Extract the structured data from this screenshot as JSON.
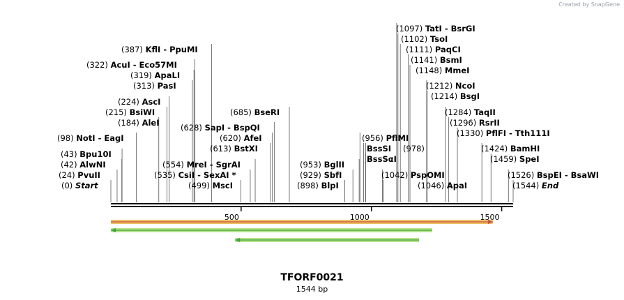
{
  "credit": "Created by SnapGene",
  "title": "TFORF0021",
  "length_label": "1544 bp",
  "sequence_length": 1544,
  "ticks": [
    500,
    1000,
    1500
  ],
  "sites": [
    {
      "pos": "(0)",
      "names": [
        "Start"
      ],
      "bp": 0,
      "italic": true
    },
    {
      "pos": "(24)",
      "names": [
        "PvuII"
      ],
      "bp": 24
    },
    {
      "pos": "(42)",
      "names": [
        "AlwNI"
      ],
      "bp": 42
    },
    {
      "pos": "(43)",
      "names": [
        "Bpu10I"
      ],
      "bp": 43
    },
    {
      "pos": "(98)",
      "names": [
        "NotI",
        "EagI"
      ],
      "bp": 98
    },
    {
      "pos": "(184)",
      "names": [
        "AleI"
      ],
      "bp": 184
    },
    {
      "pos": "(215)",
      "names": [
        "BsiWI"
      ],
      "bp": 215
    },
    {
      "pos": "(224)",
      "names": [
        "AscI"
      ],
      "bp": 224
    },
    {
      "pos": "(313)",
      "names": [
        "PasI"
      ],
      "bp": 313
    },
    {
      "pos": "(319)",
      "names": [
        "ApaLI"
      ],
      "bp": 319
    },
    {
      "pos": "(322)",
      "names": [
        "AcuI",
        "Eco57MI"
      ],
      "bp": 322
    },
    {
      "pos": "(387)",
      "names": [
        "KflI",
        "PpuMI"
      ],
      "bp": 387
    },
    {
      "pos": "(499)",
      "names": [
        "MscI"
      ],
      "bp": 499
    },
    {
      "pos": "(535)",
      "names": [
        "CsiI",
        "SexAI *"
      ],
      "bp": 535
    },
    {
      "pos": "(554)",
      "names": [
        "MreI",
        "SgrAI"
      ],
      "bp": 554
    },
    {
      "pos": "(613)",
      "names": [
        "BstXI"
      ],
      "bp": 613
    },
    {
      "pos": "(620)",
      "names": [
        "AfeI"
      ],
      "bp": 620
    },
    {
      "pos": "(628)",
      "names": [
        "SapI",
        "BspQI"
      ],
      "bp": 628
    },
    {
      "pos": "(685)",
      "names": [
        "BseRI"
      ],
      "bp": 685
    },
    {
      "pos": "(898)",
      "names": [
        "BlpI"
      ],
      "bp": 898
    },
    {
      "pos": "(929)",
      "names": [
        "SbfI"
      ],
      "bp": 929
    },
    {
      "pos": "(953)",
      "names": [
        "BglII"
      ],
      "bp": 953
    },
    {
      "pos": "(956)",
      "names": [
        "PflMI"
      ],
      "bp": 956
    },
    {
      "pos": "",
      "names": [
        "BssSI"
      ],
      "bp": 970
    },
    {
      "pos": "(978)",
      "names": [],
      "bp": 978
    },
    {
      "pos": "",
      "names": [
        "BssSαI"
      ],
      "bp": 978
    },
    {
      "pos": "(1042)",
      "names": [
        "PspOMI"
      ],
      "bp": 1042
    },
    {
      "pos": "(1046)",
      "names": [
        "ApaI"
      ],
      "bp": 1046
    },
    {
      "pos": "(1097)",
      "names": [
        "TatI",
        "BsrGI"
      ],
      "bp": 1097
    },
    {
      "pos": "(1102)",
      "names": [
        "TsoI"
      ],
      "bp": 1102
    },
    {
      "pos": "(1111)",
      "names": [
        "PaqCI"
      ],
      "bp": 1111
    },
    {
      "pos": "(1141)",
      "names": [
        "BsmI"
      ],
      "bp": 1141
    },
    {
      "pos": "(1148)",
      "names": [
        "MmeI"
      ],
      "bp": 1148
    },
    {
      "pos": "(1212)",
      "names": [
        "NcoI"
      ],
      "bp": 1212
    },
    {
      "pos": "(1214)",
      "names": [
        "BsgI"
      ],
      "bp": 1214
    },
    {
      "pos": "(1284)",
      "names": [
        "TaqII"
      ],
      "bp": 1284
    },
    {
      "pos": "(1296)",
      "names": [
        "RsrII"
      ],
      "bp": 1296
    },
    {
      "pos": "(1330)",
      "names": [
        "PflFI",
        "Tth111I"
      ],
      "bp": 1330
    },
    {
      "pos": "(1424)",
      "names": [
        "BamHI"
      ],
      "bp": 1424
    },
    {
      "pos": "(1459)",
      "names": [
        "SpeI"
      ],
      "bp": 1459
    },
    {
      "pos": "(1526)",
      "names": [
        "BspEI",
        "BsaWI"
      ],
      "bp": 1526
    },
    {
      "pos": "(1544)",
      "names": [
        "End"
      ],
      "bp": 1544,
      "italic": true
    }
  ],
  "features": [
    {
      "name": "orf-forward",
      "start_bp": 0,
      "end_bp": 1466,
      "direction": "forward",
      "fill": "#f0c060",
      "stroke": "#c0504d"
    },
    {
      "name": "orf-reverse-1",
      "start_bp": 0,
      "end_bp": 1233,
      "direction": "reverse",
      "fill": "#b8e08c",
      "stroke": "#3aa63a"
    },
    {
      "name": "orf-reverse-2",
      "start_bp": 477,
      "end_bp": 1183,
      "direction": "reverse",
      "fill": "#b8e08c",
      "stroke": "#3aa63a"
    }
  ]
}
